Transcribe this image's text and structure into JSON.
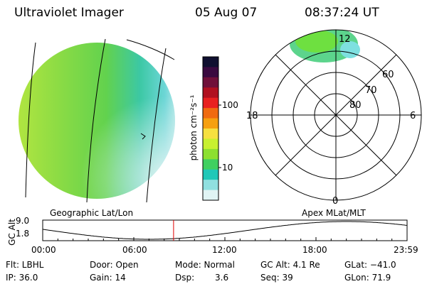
{
  "header": {
    "instrument": "Ultraviolet Imager",
    "date": "05 Aug 07",
    "time": "08:37:24 UT"
  },
  "colorbar": {
    "unit_label": "photon cm⁻²s⁻¹",
    "ticks": [
      "100",
      "10"
    ],
    "colors": [
      "#101030",
      "#3a0a40",
      "#70103a",
      "#b01020",
      "#e82020",
      "#f06a10",
      "#f6a010",
      "#f6e040",
      "#c8f030",
      "#8ce030",
      "#40d060",
      "#20c8b8",
      "#90e0e0",
      "#e0f4f4"
    ]
  },
  "polar": {
    "mlt_labels": {
      "top": "12",
      "left": "18",
      "right": "6",
      "bottom": "0"
    },
    "lat_labels": [
      "60",
      "70",
      "80"
    ]
  },
  "timeline": {
    "left_title": "Geographic Lat/Lon",
    "right_title": "Apex  MLat/MLT",
    "axis_label": "GC Alt",
    "y_top": "9.0",
    "y_bottom": "1.8",
    "x_ticks": [
      "00:00",
      "06:00",
      "12:00",
      "18:00",
      "23:59"
    ],
    "current_marker_hour": 8.62
  },
  "status": {
    "flt": "Flt: LBHL",
    "ip": "IP: 36.0",
    "door": "Door: Open",
    "gain": "Gain: 14",
    "mode": "Mode: Normal",
    "dsp_label": "Dsp:",
    "dsp_value": "3.6",
    "gcalt": "GC Alt: 4.1 Re",
    "seq": "Seq: 39",
    "glat": "GLat: −41.0",
    "glon": "GLon:  71.9"
  }
}
